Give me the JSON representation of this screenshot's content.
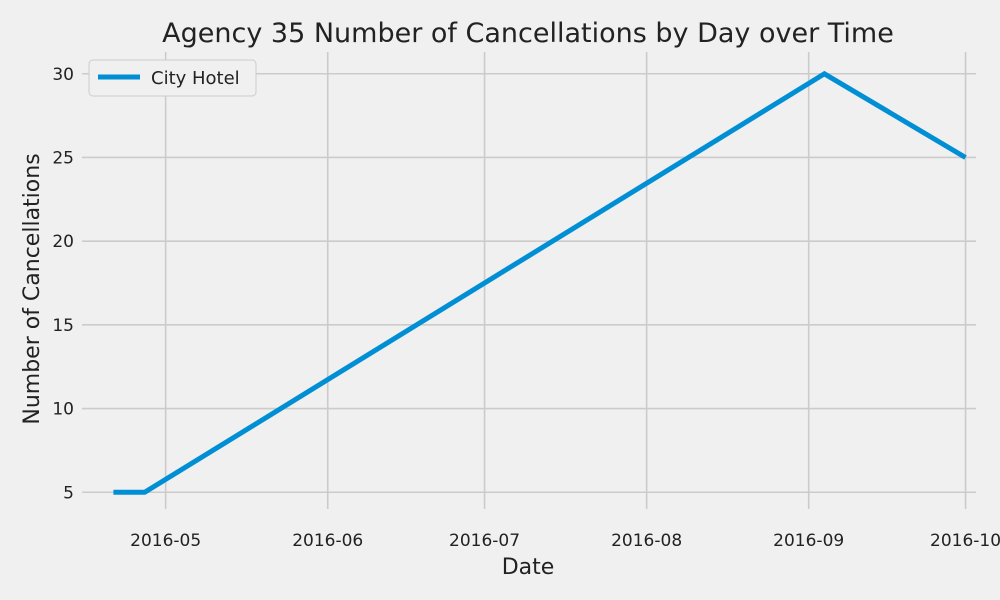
{
  "chart_data": {
    "type": "line",
    "title": "Agency 35 Number of Cancellations by Day over Time",
    "xlabel": "Date",
    "ylabel": "Number of Cancellations",
    "x_axis_type": "date",
    "xlim": [
      "2016-04-15",
      "2016-10-03"
    ],
    "ylim": [
      4.0,
      31.3
    ],
    "x_ticks": [
      {
        "date": "2016-05-01",
        "label": "2016-05"
      },
      {
        "date": "2016-06-01",
        "label": "2016-06"
      },
      {
        "date": "2016-07-01",
        "label": "2016-07"
      },
      {
        "date": "2016-08-01",
        "label": "2016-08"
      },
      {
        "date": "2016-09-01",
        "label": "2016-09"
      },
      {
        "date": "2016-10-01",
        "label": "2016-10"
      }
    ],
    "y_ticks": [
      5,
      10,
      15,
      20,
      25,
      30
    ],
    "grid": true,
    "legend": {
      "placement": "top-left"
    },
    "series": [
      {
        "name": "City Hotel",
        "color": "#008fd5",
        "x": [
          "2016-04-21",
          "2016-04-27",
          "2016-09-04",
          "2016-10-01"
        ],
        "y": [
          5,
          5,
          30,
          25
        ]
      }
    ]
  }
}
